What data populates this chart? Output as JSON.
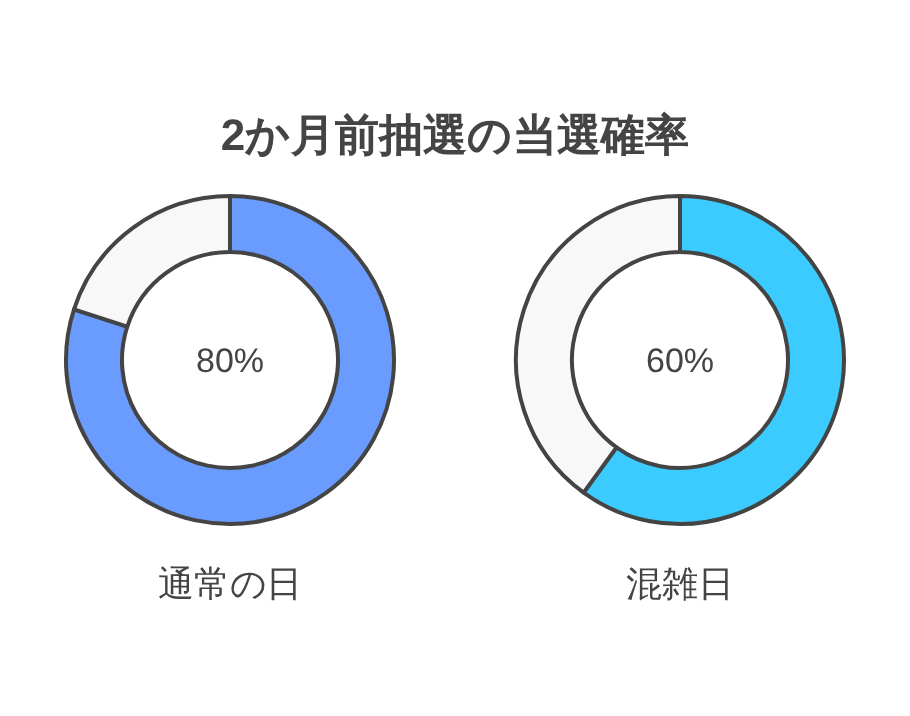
{
  "chart_data": [
    {
      "type": "donut",
      "title": "2か月前抽選の当選確率",
      "xlabel": "通常の日",
      "categories": [
        null,
        null
      ],
      "values": [
        80,
        20
      ],
      "colors": [
        "#6a9cff",
        "#f8f8f8"
      ],
      "value_labels": [
        "80%",
        null
      ]
    },
    {
      "type": "donut",
      "xlabel": "混雑日",
      "categories": [
        null,
        null
      ],
      "values": [
        60,
        40
      ],
      "colors": [
        "#3ccbff",
        "#f8f8f8"
      ],
      "value_labels": [
        "60%",
        null
      ]
    }
  ]
}
